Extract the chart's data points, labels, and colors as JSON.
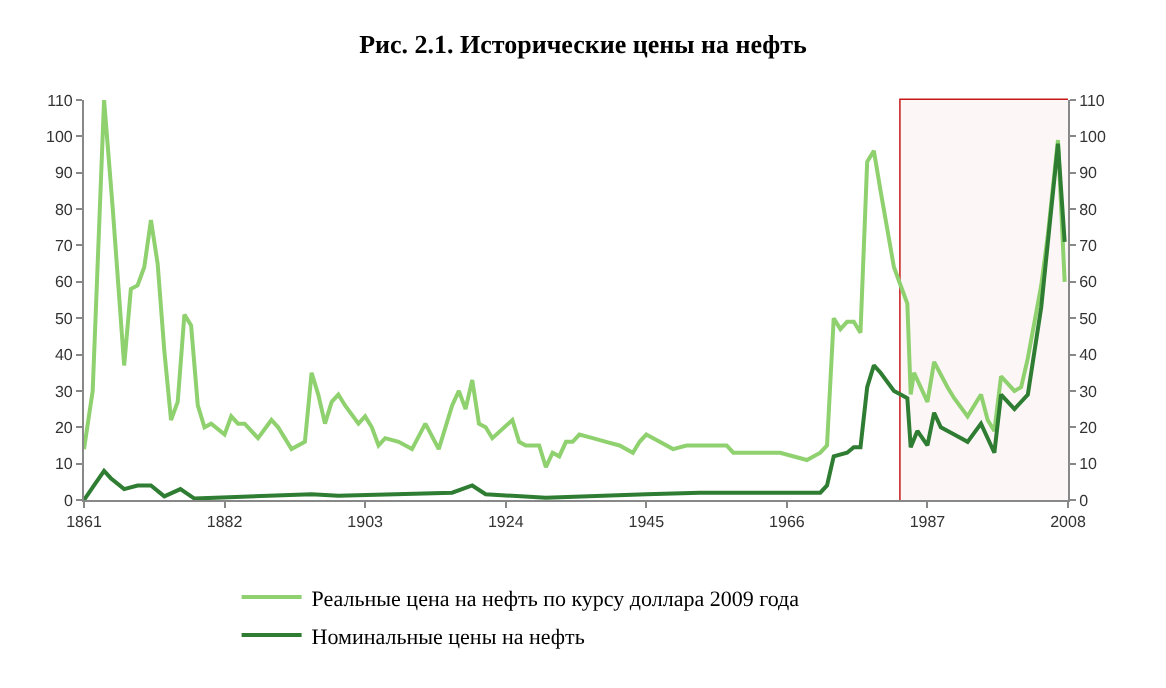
{
  "chart_data": {
    "type": "line",
    "title": "Рис. 2.1. Исторические цены на нефть",
    "series": [
      {
        "name": "Реальные цена на нефть по курсу доллара 2009 года",
        "color": "#8fd16f",
        "x": [
          1861,
          1862.3,
          1864,
          1865.3,
          1867,
          1868,
          1869,
          1870,
          1871,
          1872,
          1873,
          1874,
          1875,
          1876,
          1877,
          1878,
          1879,
          1880,
          1882,
          1883,
          1884,
          1885,
          1887,
          1889,
          1890,
          1892,
          1894,
          1895,
          1896,
          1897,
          1898,
          1899,
          1900,
          1902,
          1903,
          1904,
          1905,
          1906,
          1908,
          1910,
          1912,
          1914,
          1916,
          1917,
          1918,
          1919,
          1920,
          1921,
          1922,
          1925,
          1926,
          1927,
          1929,
          1930,
          1931,
          1932,
          1933,
          1934,
          1935,
          1937,
          1939,
          1941,
          1943,
          1944,
          1945,
          1947,
          1949,
          1951,
          1954,
          1957,
          1958,
          1962,
          1965,
          1969,
          1971,
          1972,
          1973,
          1974,
          1975,
          1976,
          1977,
          1978,
          1979,
          1980,
          1982,
          1983,
          1984,
          1984.5,
          1985,
          1987,
          1988,
          1990,
          1991,
          1993,
          1995,
          1996,
          1997,
          1998,
          2000,
          2001,
          2002,
          2004,
          2005,
          2006.5,
          2007.5
        ],
        "values": [
          14,
          30,
          110,
          80,
          37,
          58,
          59,
          64,
          77,
          65,
          41,
          22,
          27,
          51,
          48,
          26,
          20,
          21,
          18,
          23,
          21,
          21,
          17,
          22,
          20,
          14,
          16,
          35,
          29,
          21,
          27,
          29,
          26,
          21,
          23,
          20,
          15,
          17,
          16,
          14,
          21,
          14,
          26,
          30,
          25,
          33,
          21,
          20,
          17,
          22,
          16,
          15,
          15,
          9,
          13,
          12,
          16,
          16,
          18,
          17,
          16,
          15,
          13,
          16,
          18,
          16,
          14,
          15,
          15,
          15,
          13,
          13,
          13,
          11,
          13,
          15,
          50,
          47,
          49,
          49,
          46,
          93,
          96,
          85,
          64,
          59,
          54,
          29,
          35,
          27,
          38,
          31,
          28,
          23,
          29,
          22,
          19,
          34,
          30,
          31,
          39,
          59,
          73,
          99,
          60
        ]
      },
      {
        "name": "Номинальные цены на нефть",
        "color": "#2e7d32",
        "x": [
          1861,
          1862.5,
          1864,
          1865,
          1867,
          1869,
          1871,
          1873,
          1875.4,
          1877.5,
          1895,
          1899,
          1916,
          1919,
          1921,
          1930,
          1945,
          1953,
          1962,
          1971,
          1972,
          1973,
          1975,
          1976,
          1977,
          1978,
          1979,
          1980,
          1982,
          1983,
          1984,
          1984.5,
          1985.5,
          1987,
          1988,
          1989,
          1991,
          1993,
          1995,
          1997,
          1998,
          2000,
          2002,
          2004,
          2005,
          2006.5,
          2007.5
        ],
        "values": [
          0,
          4,
          8,
          6,
          3,
          4,
          4,
          1,
          3,
          0.4,
          1.6,
          1.2,
          2,
          4,
          1.6,
          0.6,
          1.6,
          2,
          2,
          2,
          4,
          12,
          13,
          14.5,
          14.5,
          31,
          37,
          35,
          30,
          29,
          28,
          14.5,
          19,
          15,
          24,
          20,
          18,
          16,
          21,
          13,
          29,
          25,
          29,
          53,
          71,
          98,
          71
        ]
      }
    ],
    "xlim": [
      1861,
      2008
    ],
    "xticks": [
      1861,
      1882,
      1903,
      1924,
      1945,
      1966,
      1987,
      2008
    ],
    "ylim": [
      0,
      110
    ],
    "yticks": [
      0,
      10,
      20,
      30,
      40,
      50,
      60,
      70,
      80,
      90,
      100,
      110
    ],
    "y2lim": [
      0,
      110
    ],
    "y2ticks": [
      0,
      10,
      20,
      30,
      40,
      50,
      60,
      70,
      80,
      90,
      100,
      110
    ],
    "bands": [
      {
        "axis": "x",
        "from": 1983,
        "to": 2008,
        "color": "#c00000"
      }
    ],
    "legend": "bottom",
    "grid": false,
    "marker": "none",
    "line_style": "solid"
  }
}
